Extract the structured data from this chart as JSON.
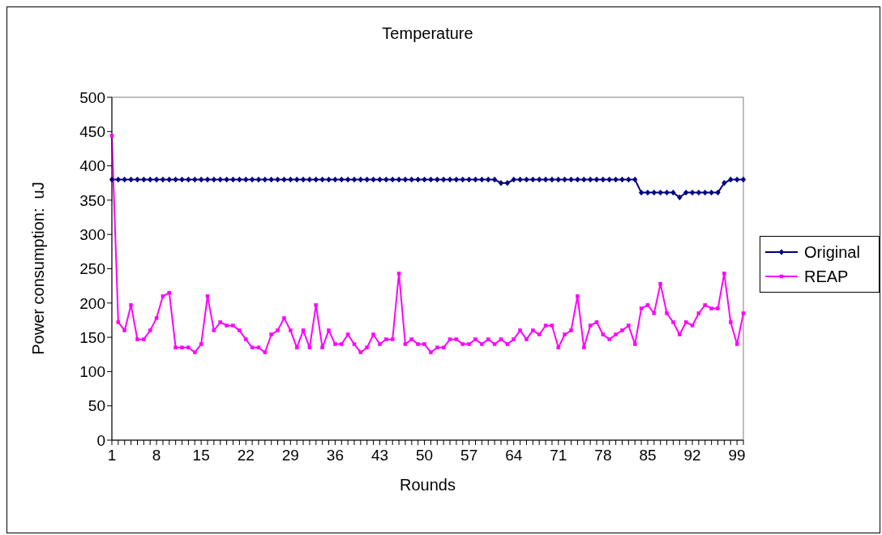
{
  "chart_data": {
    "type": "line",
    "title": "Temperature",
    "xlabel": "Rounds",
    "ylabel": "Power consumption:  uJ",
    "categories": [
      "1",
      null,
      null,
      null,
      null,
      null,
      null,
      "8",
      null,
      null,
      null,
      null,
      null,
      null,
      "15",
      null,
      null,
      null,
      null,
      null,
      null,
      "22",
      null,
      null,
      null,
      null,
      null,
      null,
      "29",
      null,
      null,
      null,
      null,
      null,
      null,
      "36",
      null,
      null,
      null,
      null,
      null,
      null,
      "43",
      null,
      null,
      null,
      null,
      null,
      null,
      "50",
      null,
      null,
      null,
      null,
      null,
      null,
      "57",
      null,
      null,
      null,
      null,
      null,
      null,
      "64",
      null,
      null,
      null,
      null,
      null,
      null,
      "71",
      null,
      null,
      null,
      null,
      null,
      null,
      "78",
      null,
      null,
      null,
      null,
      null,
      null,
      "85",
      null,
      null,
      null,
      null,
      null,
      null,
      "92",
      null,
      null,
      null,
      null,
      null,
      null,
      "99",
      null
    ],
    "series": [
      {
        "name": "Original",
        "color": "#000080",
        "marker": "diamond",
        "values": [
          380,
          380,
          380,
          380,
          380,
          380,
          380,
          380,
          380,
          380,
          380,
          380,
          380,
          380,
          380,
          380,
          380,
          380,
          380,
          380,
          380,
          380,
          380,
          380,
          380,
          380,
          380,
          380,
          380,
          380,
          380,
          380,
          380,
          380,
          380,
          380,
          380,
          380,
          380,
          380,
          380,
          380,
          380,
          380,
          380,
          380,
          380,
          380,
          380,
          380,
          380,
          380,
          380,
          380,
          380,
          380,
          380,
          380,
          380,
          380,
          380,
          375,
          375,
          380,
          380,
          380,
          380,
          380,
          380,
          380,
          380,
          380,
          380,
          380,
          380,
          380,
          380,
          380,
          380,
          380,
          380,
          380,
          380,
          361,
          361,
          361,
          361,
          361,
          361,
          354,
          361,
          361,
          361,
          361,
          361,
          361,
          375,
          380,
          380,
          380
        ]
      },
      {
        "name": "REAP",
        "color": "#ff00ff",
        "marker": "square",
        "values": [
          444,
          172,
          160,
          197,
          147,
          147,
          160,
          178,
          210,
          215,
          135,
          135,
          135,
          128,
          140,
          210,
          160,
          172,
          167,
          167,
          160,
          147,
          135,
          135,
          128,
          154,
          160,
          178,
          160,
          135,
          160,
          135,
          197,
          135,
          160,
          140,
          140,
          154,
          140,
          128,
          135,
          154,
          140,
          147,
          147,
          243,
          140,
          147,
          140,
          140,
          128,
          135,
          135,
          147,
          147,
          140,
          140,
          147,
          140,
          147,
          140,
          147,
          140,
          147,
          160,
          147,
          160,
          154,
          167,
          167,
          135,
          154,
          160,
          210,
          135,
          167,
          172,
          154,
          147,
          154,
          160,
          167,
          140,
          192,
          197,
          185,
          228,
          185,
          172,
          154,
          172,
          167,
          185,
          197,
          192,
          192,
          243,
          172,
          140,
          185
        ]
      }
    ],
    "ylim": [
      0,
      500
    ],
    "yticks": [
      0,
      50,
      100,
      150,
      200,
      250,
      300,
      350,
      400,
      450,
      500
    ],
    "grid": false,
    "legend": "right",
    "line_style": "solid"
  }
}
